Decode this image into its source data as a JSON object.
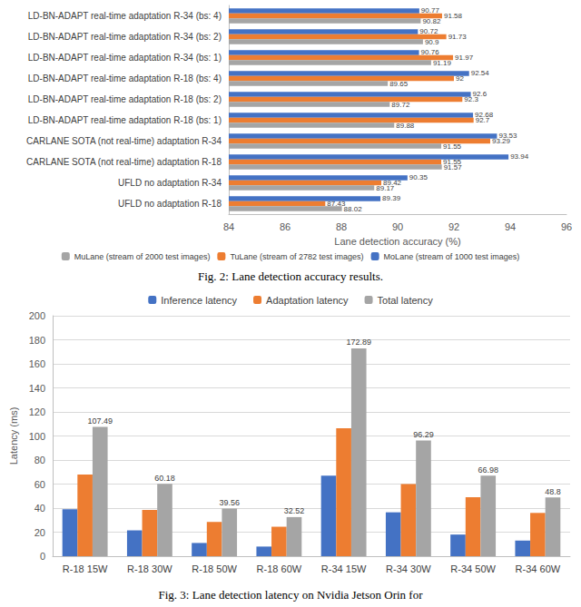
{
  "chart_data": [
    {
      "type": "bar",
      "orientation": "horizontal",
      "title": "Fig. 2: Lane detection accuracy results.",
      "xlabel": "Lane detection accuracy (%)",
      "categories": [
        "UFLD no adaptation R-18",
        "UFLD no adaptation R-34",
        "CARLANE SOTA (not real-time) adaptation R-18",
        "CARLANE SOTA (not real-time) adaptation R-34",
        "LD-BN-ADAPT real-time adaptation R-18 (bs: 1)",
        "LD-BN-ADAPT real-time adaptation R-18 (bs: 2)",
        "LD-BN-ADAPT real-time adaptation R-18 (bs: 4)",
        "LD-BN-ADAPT real-time adaptation R-34 (bs: 1)",
        "LD-BN-ADAPT real-time adaptation R-34 (bs: 2)",
        "LD-BN-ADAPT real-time adaptation R-34 (bs: 4)"
      ],
      "series": [
        {
          "name": "MuLane (stream of 2000 test images)",
          "color": "#a5a5a5",
          "values": [
            88.02,
            89.17,
            91.57,
            91.55,
            89.88,
            89.72,
            89.65,
            91.19,
            90.9,
            90.82
          ]
        },
        {
          "name": "TuLane (stream of 2782 test images)",
          "color": "#ed7d31",
          "values": [
            87.43,
            89.42,
            91.55,
            93.29,
            92.7,
            92.3,
            92,
            91.97,
            91.73,
            91.58
          ]
        },
        {
          "name": "MoLane (stream of 1000 test images)",
          "color": "#4472c4",
          "values": [
            89.39,
            90.35,
            93.94,
            93.53,
            92.68,
            92.6,
            92.54,
            90.76,
            90.72,
            90.77
          ]
        }
      ],
      "xlim": [
        84,
        96
      ],
      "xticks": [
        84,
        86,
        88,
        90,
        92,
        94,
        96
      ],
      "grid": false,
      "legend": "bottom",
      "data_labels": true
    },
    {
      "type": "bar",
      "title": "Fig. 3: Lane detection latency on Nvidia Jetson Orin for",
      "ylabel": "Latency (ms)",
      "categories": [
        "R-18 15W",
        "R-18 30W",
        "R-18 50W",
        "R-18 60W",
        "R-34 15W",
        "R-34 30W",
        "R-34 50W",
        "R-34 60W"
      ],
      "series": [
        {
          "name": "Inference latency",
          "color": "#4472c4",
          "values": [
            39,
            21.5,
            11,
            8,
            67,
            36.5,
            18,
            13
          ]
        },
        {
          "name": "Adaptation latency",
          "color": "#ed7d31",
          "values": [
            68,
            38.5,
            28.5,
            24.5,
            106.5,
            60,
            49,
            36
          ]
        },
        {
          "name": "Total latency",
          "color": "#a5a5a5",
          "values": [
            107.49,
            60.18,
            39.56,
            32.52,
            172.89,
            96.29,
            66.98,
            48.8
          ],
          "data_labels": true
        }
      ],
      "ylim": [
        0,
        200
      ],
      "yticks": [
        0,
        20,
        40,
        60,
        80,
        100,
        120,
        140,
        160,
        180,
        200
      ],
      "grid": true,
      "legend": "top"
    }
  ]
}
